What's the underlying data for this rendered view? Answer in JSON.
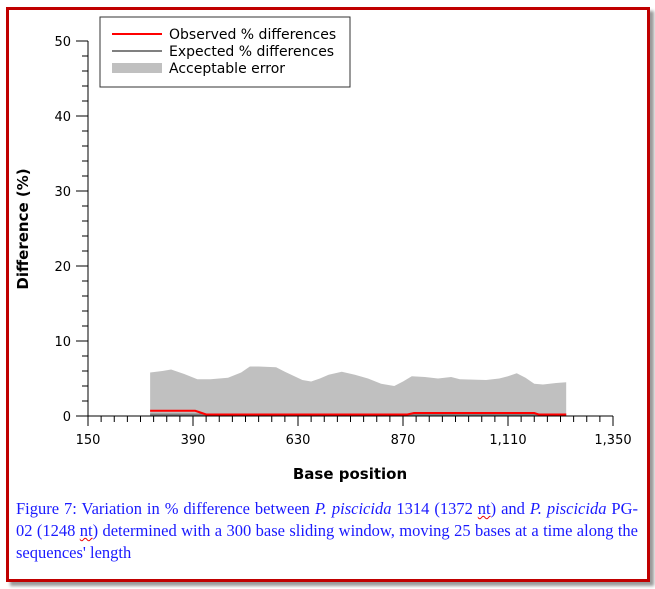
{
  "chart_data": {
    "type": "area",
    "title": "",
    "xlabel": "Base position",
    "ylabel": "Difference (%)",
    "xlim": [
      150,
      1350
    ],
    "ylim": [
      0,
      50
    ],
    "xticks": [
      150,
      390,
      630,
      870,
      1110,
      1350
    ],
    "xtick_labels": [
      "150",
      "390",
      "630",
      "870",
      "1,110",
      "1,350"
    ],
    "xminor_step": 30,
    "yticks": [
      0,
      10,
      20,
      30,
      40,
      50
    ],
    "ytick_labels": [
      "0",
      "10",
      "20",
      "30",
      "40",
      "50"
    ],
    "yminor_step": 2,
    "legend": {
      "placement": "top-left",
      "entries": [
        "Observed % differences",
        "Expected % differences",
        "Acceptable error"
      ]
    },
    "colors": {
      "observed": "#ff0000",
      "expected": "#808080",
      "error": "#c0c0c0"
    },
    "acceptable_error_upper": {
      "x": [
        292,
        320,
        340,
        370,
        400,
        430,
        450,
        470,
        500,
        520,
        540,
        580,
        600,
        640,
        660,
        680,
        700,
        730,
        760,
        790,
        820,
        850,
        870,
        890,
        920,
        950,
        980,
        1000,
        1060,
        1090,
        1110,
        1130,
        1150,
        1170,
        1190,
        1220,
        1243
      ],
      "y": [
        5.8,
        6.0,
        6.2,
        5.6,
        4.9,
        4.9,
        5.0,
        5.1,
        5.8,
        6.6,
        6.6,
        6.5,
        5.9,
        4.8,
        4.6,
        5.0,
        5.5,
        5.9,
        5.5,
        5.0,
        4.3,
        4.0,
        4.6,
        5.3,
        5.2,
        5.0,
        5.2,
        4.9,
        4.8,
        5.0,
        5.3,
        5.7,
        5.1,
        4.3,
        4.2,
        4.4,
        4.5
      ]
    },
    "expected": {
      "x": [
        292,
        1243
      ],
      "y": [
        0.2,
        0.2
      ]
    },
    "observed": {
      "x": [
        292,
        395,
        405,
        420,
        880,
        895,
        1170,
        1180,
        1243
      ],
      "y": [
        0.7,
        0.7,
        0.5,
        0.2,
        0.2,
        0.4,
        0.4,
        0.2,
        0.2
      ]
    }
  },
  "caption": {
    "p1": "Figure 7: Variation in % difference between ",
    "i1": "P. piscicida",
    "p2": " 1314 (1372 ",
    "nt1": "nt",
    "p3": ") and ",
    "i2": "P. piscicida",
    "p4": " PG-02 (1248 ",
    "nt2": "nt",
    "p5": ") determined with a 300 base sliding window, moving 25 bases at a time along the sequences' length"
  }
}
